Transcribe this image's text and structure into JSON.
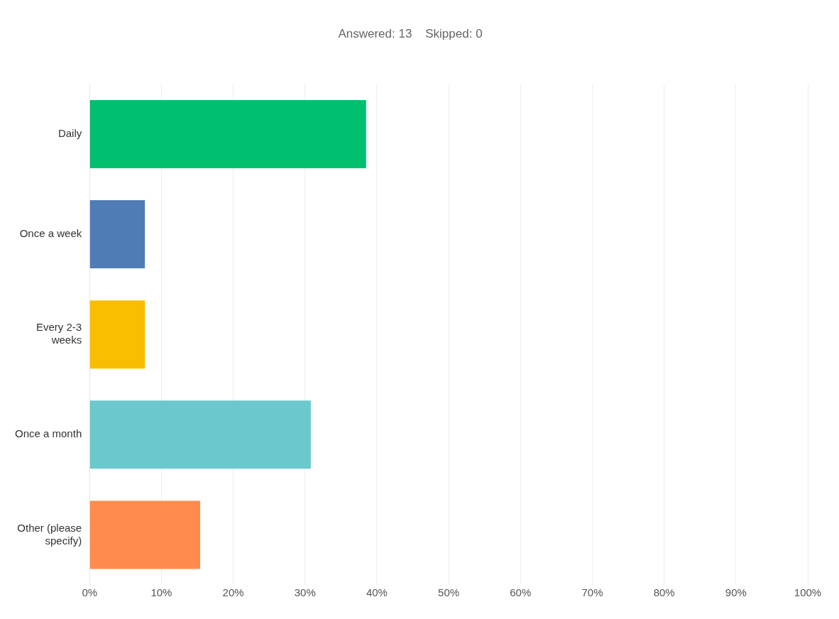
{
  "chart_data": {
    "type": "bar",
    "orientation": "horizontal",
    "title": "Answered: 13    Skipped: 0",
    "categories": [
      "Daily",
      "Once a week",
      "Every 2-3 weeks",
      "Once a month",
      "Other (please specify)"
    ],
    "values": [
      38.5,
      7.7,
      7.7,
      30.8,
      15.4
    ],
    "colors": [
      "#00bf6f",
      "#507cb6",
      "#f9be00",
      "#6bc8cd",
      "#ff8b4f"
    ],
    "xlim": [
      0,
      100
    ],
    "xticks": [
      {
        "value": 0,
        "label": "0%"
      },
      {
        "value": 10,
        "label": "10%"
      },
      {
        "value": 20,
        "label": "20%"
      },
      {
        "value": 30,
        "label": "30%"
      },
      {
        "value": 40,
        "label": "40%"
      },
      {
        "value": 50,
        "label": "50%"
      },
      {
        "value": 60,
        "label": "60%"
      },
      {
        "value": 70,
        "label": "70%"
      },
      {
        "value": 80,
        "label": "80%"
      },
      {
        "value": 90,
        "label": "90%"
      },
      {
        "value": 100,
        "label": "100%"
      }
    ],
    "grid": "x"
  }
}
